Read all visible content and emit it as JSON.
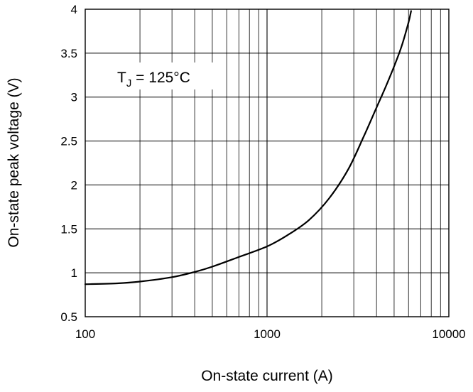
{
  "chart_data": {
    "type": "line",
    "xlabel": "On-state current (A)",
    "ylabel": "On-state peak voltage (V)",
    "xscale": "log",
    "xlim": [
      100,
      10000
    ],
    "ylim": [
      0.5,
      4
    ],
    "xticks": [
      "100",
      "1000",
      "10000"
    ],
    "yticks": [
      "0.5",
      "1",
      "1.5",
      "2",
      "2.5",
      "3",
      "3.5",
      "4"
    ],
    "grid": true,
    "annotation": {
      "base": "T",
      "subscript": "J",
      "rest": " = 125°C"
    },
    "series": [
      {
        "x": [
          100,
          150,
          200,
          300,
          400,
          500,
          700,
          1000,
          1300,
          1700,
          2200,
          2800,
          3400,
          4000,
          4500,
          5000,
          5500,
          6000,
          6200
        ],
        "y": [
          0.87,
          0.88,
          0.9,
          0.95,
          1.01,
          1.07,
          1.18,
          1.3,
          1.43,
          1.6,
          1.85,
          2.18,
          2.55,
          2.88,
          3.12,
          3.35,
          3.58,
          3.85,
          3.98
        ]
      }
    ]
  }
}
